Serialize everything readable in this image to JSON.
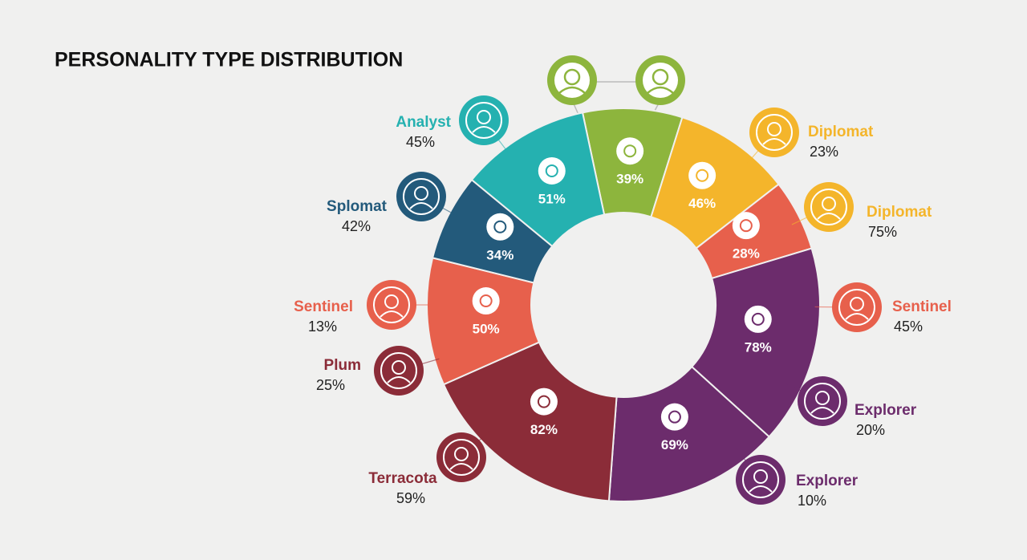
{
  "chart_data": {
    "type": "donut",
    "title": "PERSONALITY TYPE DISTRIBUTION",
    "values": [
      39,
      46,
      28,
      78,
      69,
      82,
      50,
      34,
      51
    ],
    "value_labels": [
      "39%",
      "46%",
      "28%",
      "78%",
      "69%",
      "82%",
      "50%",
      "34%",
      "51%"
    ],
    "colors": [
      "#8db53d",
      "#f4b52b",
      "#e7604c",
      "#6c2c6c",
      "#6c2c6c",
      "#8b2c38",
      "#e7604c",
      "#235a7b",
      "#25b1b0"
    ],
    "callouts": [
      {
        "name": "Analyst",
        "label": "45%",
        "color": "#25b1b0"
      },
      {
        "name": "Splomat",
        "label": "42%",
        "color": "#235a7b"
      },
      {
        "name": "Sentinel",
        "label": "13%",
        "color": "#e7604c"
      },
      {
        "name": "Plum",
        "label": "25%",
        "color": "#8b2c38"
      },
      {
        "name": "Terracota",
        "label": "59%",
        "color": "#8b2c38"
      },
      {
        "name": "Diplomat",
        "label": "23%",
        "color": "#f4b52b"
      },
      {
        "name": "Diplomat",
        "label": "75%",
        "color": "#f4b52b"
      },
      {
        "name": "Sentinel",
        "label": "45%",
        "color": "#e7604c"
      },
      {
        "name": "Explorer",
        "label": "20%",
        "color": "#6c2c6c"
      },
      {
        "name": "Explorer",
        "label": "10%",
        "color": "#6c2c6c"
      }
    ]
  }
}
